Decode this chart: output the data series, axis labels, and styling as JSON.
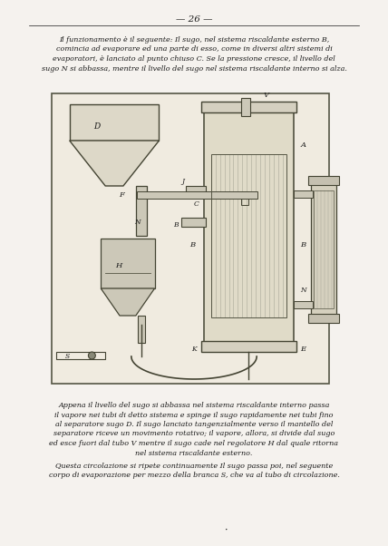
{
  "page_number": "— 26 —",
  "top_text": "Il funzionamento è il seguente: Il sugo, nel sistema riscaldante esterno B,\ncomincia ad evaporare ed una parte di esso, come in diversi altri sistemi di\nevaporatori, è lanciato al punto chiuso C. Se la pressione cresce, il livello del\nsugo N si abbassa, mentre il livello del sugo nel sistema riscaldante interno si alza.",
  "bottom_text_1": "Appena il livello del sugo si abbassa nel sistema riscaldante interno passa\nil vapore nei tubi di detto sistema e spinge il sugo rapidamente nei tubi fino\nal separatore sugo D. Il sugo lanciato tangenzialmente verso il mantello del\nseparatore riceve un movimento rotativo; il vapore, allora, si divide dal sugo\ned esce fuori dal tubo V mentre il sugo cade nel regolatore H dal quale ritorna\nnel sistema riscaldante esterno.",
  "bottom_text_2": "Questa circolazione si ripete continuamente Il sugo passa poi, nel seguente\ncorpo di evaporazione per mezzo della branca S, che va al tubo di circolazione.",
  "bg_color": "#f5f2ee",
  "text_color": "#1a1a1a",
  "diagram_bg": "#e8e0d0",
  "diagram_border": "#333333"
}
